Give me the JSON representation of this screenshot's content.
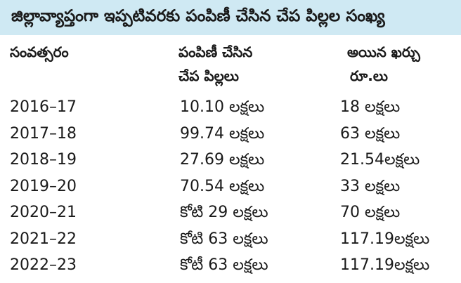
{
  "title": "జిల్లావ్యాప్తంగా ఇప్పటివరకు పంపిణీ చేసిన చేప పిల్లల సంఖ్య",
  "headers": {
    "year": "సంవత్సరం",
    "fish_line1": "పంపిణీ చేసిన",
    "fish_line2": "చేప పిల్లలు",
    "cost_line1": "అయిన ఖర్చు",
    "cost_line2": "రూ.లు"
  },
  "rows": [
    {
      "year": "2016–17",
      "fish": "10.10 లక్షలు",
      "cost": "18 లక్షలు"
    },
    {
      "year": "2017–18",
      "fish": "99.74 లక్షలు",
      "cost": "63 లక్షలు"
    },
    {
      "year": "2018–19",
      "fish": "27.69 లక్షలు",
      "cost": "21.54లక్షలు"
    },
    {
      "year": "2019–20",
      "fish": "70.54 లక్షలు",
      "cost": "33 లక్షలు"
    },
    {
      "year": "2020–21",
      "fish": "కోటి 29 లక్షలు",
      "cost": "70 లక్షలు"
    },
    {
      "year": "2021–22",
      "fish": "కోటి 63 లక్షలు",
      "cost": "117.19లక్షలు"
    },
    {
      "year": "2022–23",
      "fish": "కోటీ 63 లక్షలు",
      "cost": "117.19లక్షలు"
    }
  ],
  "colors": {
    "title_background": "#cfe9f3",
    "text": "#1a1a1a"
  }
}
